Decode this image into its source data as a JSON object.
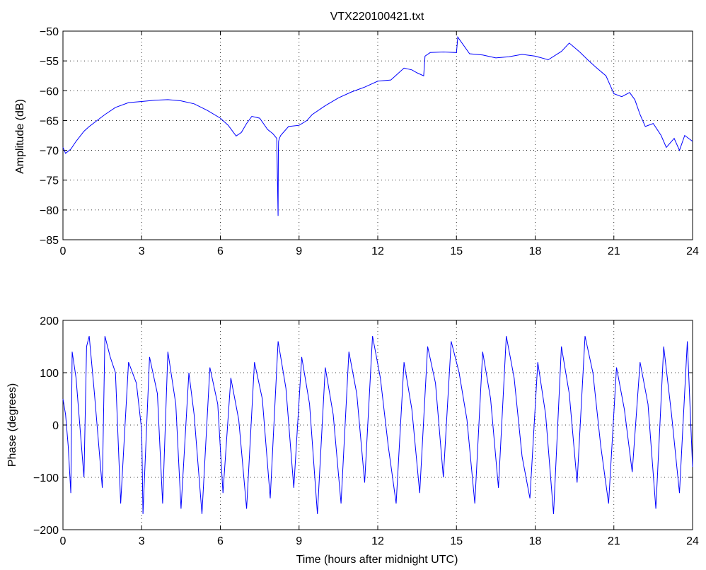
{
  "chart_data": [
    {
      "type": "line",
      "title": "VTX220100421.txt",
      "xlabel": "",
      "ylabel": "Amplitude (dB)",
      "xlim": [
        0,
        24
      ],
      "ylim": [
        -85,
        -50
      ],
      "xticks": [
        "0",
        "3",
        "6",
        "9",
        "12",
        "15",
        "18",
        "21",
        "24"
      ],
      "yticks": [
        "-50",
        "-55",
        "-60",
        "-65",
        "-70",
        "-75",
        "-80",
        "-85"
      ],
      "grid": true,
      "color": "#0000ff",
      "series": [
        {
          "x": [
            0,
            0.1,
            0.3,
            0.5,
            0.8,
            1.0,
            1.3,
            1.6,
            2.0,
            2.5,
            3.0,
            3.5,
            4.0,
            4.5,
            5.0,
            5.5,
            6.0,
            6.3,
            6.6,
            6.8,
            7.0,
            7.2,
            7.5,
            7.8,
            8.0,
            8.15,
            8.2,
            8.21,
            8.22,
            8.25,
            8.3,
            8.6,
            9.0,
            9.3,
            9.5,
            10.0,
            10.5,
            11.0,
            11.5,
            12.0,
            12.5,
            13.0,
            13.3,
            13.5,
            13.75,
            13.8,
            14.0,
            14.5,
            15.0,
            15.05,
            15.5,
            16.0,
            16.5,
            17.0,
            17.5,
            18.0,
            18.5,
            19.0,
            19.3,
            19.7,
            20.0,
            20.3,
            20.7,
            21.0,
            21.3,
            21.6,
            21.8,
            22.0,
            22.2,
            22.5,
            22.8,
            23.0,
            23.3,
            23.5,
            23.7,
            24.0
          ],
          "y": [
            -69.5,
            -70.5,
            -69.8,
            -68.5,
            -66.8,
            -66.0,
            -65.0,
            -64.0,
            -62.8,
            -62.0,
            -61.8,
            -61.6,
            -61.5,
            -61.7,
            -62.2,
            -63.3,
            -64.6,
            -65.8,
            -67.6,
            -67.0,
            -65.5,
            -64.3,
            -64.6,
            -66.5,
            -67.2,
            -68.0,
            -81.0,
            -70.0,
            -68.5,
            -68.0,
            -67.5,
            -66.0,
            -65.8,
            -65.0,
            -64.0,
            -62.5,
            -61.2,
            -60.2,
            -59.4,
            -58.4,
            -58.2,
            -56.2,
            -56.5,
            -57.0,
            -57.5,
            -54.2,
            -53.6,
            -53.5,
            -53.6,
            -51.0,
            -53.8,
            -54.0,
            -54.5,
            -54.3,
            -53.9,
            -54.2,
            -54.8,
            -53.4,
            -52.0,
            -53.5,
            -54.8,
            -56.0,
            -57.5,
            -60.5,
            -61.0,
            -60.3,
            -61.5,
            -64.0,
            -66.0,
            -65.5,
            -67.5,
            -69.5,
            -68.0,
            -70.0,
            -67.5,
            -68.5
          ]
        }
      ]
    },
    {
      "type": "line",
      "title": "",
      "xlabel": "Time (hours after midnight UTC)",
      "ylabel": "Phase (degrees)",
      "xlim": [
        0,
        24
      ],
      "ylim": [
        -200,
        200
      ],
      "xticks": [
        "0",
        "3",
        "6",
        "9",
        "12",
        "15",
        "18",
        "21",
        "24"
      ],
      "yticks": [
        "200",
        "100",
        "0",
        "-100",
        "-200"
      ],
      "grid": true,
      "color": "#0000ff",
      "series": [
        {
          "x": [
            0,
            0.1,
            0.2,
            0.3,
            0.35,
            0.5,
            0.8,
            0.9,
            1.0,
            1.2,
            1.5,
            1.6,
            1.8,
            2.0,
            2.2,
            2.5,
            2.8,
            3.0,
            3.05,
            3.3,
            3.6,
            3.8,
            4.0,
            4.3,
            4.5,
            4.8,
            5.0,
            5.3,
            5.6,
            5.9,
            6.1,
            6.4,
            6.7,
            7.0,
            7.3,
            7.6,
            7.9,
            8.2,
            8.5,
            8.8,
            9.1,
            9.4,
            9.7,
            10.0,
            10.3,
            10.6,
            10.9,
            11.2,
            11.5,
            11.8,
            12.1,
            12.4,
            12.7,
            13.0,
            13.3,
            13.6,
            13.9,
            14.2,
            14.5,
            14.8,
            15.1,
            15.4,
            15.7,
            16.0,
            16.3,
            16.6,
            16.9,
            17.2,
            17.5,
            17.8,
            18.1,
            18.4,
            18.7,
            19.0,
            19.3,
            19.6,
            19.9,
            20.2,
            20.5,
            20.8,
            21.1,
            21.4,
            21.7,
            22.0,
            22.3,
            22.6,
            22.9,
            23.2,
            23.5,
            23.8,
            24.0
          ],
          "y": [
            50,
            20,
            -40,
            -130,
            140,
            90,
            -100,
            150,
            170,
            60,
            -120,
            170,
            130,
            100,
            -150,
            120,
            80,
            -10,
            -170,
            130,
            60,
            -150,
            140,
            40,
            -160,
            100,
            20,
            -170,
            110,
            40,
            -130,
            90,
            10,
            -160,
            120,
            50,
            -140,
            160,
            70,
            -120,
            130,
            40,
            -170,
            110,
            20,
            -150,
            140,
            60,
            -110,
            170,
            90,
            -40,
            -150,
            120,
            30,
            -130,
            150,
            80,
            -100,
            160,
            100,
            10,
            -150,
            140,
            50,
            -120,
            170,
            90,
            -60,
            -140,
            120,
            20,
            -170,
            150,
            60,
            -110,
            170,
            100,
            -40,
            -150,
            110,
            30,
            -90,
            120,
            40,
            -160,
            150,
            20,
            -130,
            160,
            -80
          ]
        }
      ]
    }
  ]
}
